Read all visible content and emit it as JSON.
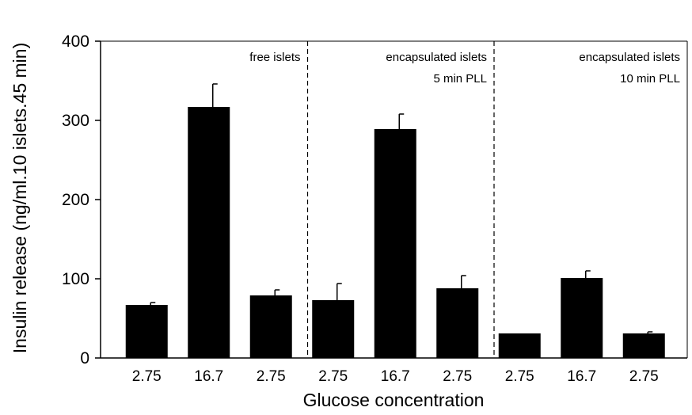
{
  "chart_data": {
    "type": "bar",
    "title": "",
    "xlabel": "Glucose concentration",
    "ylabel": "Insulin release (ng/ml.10 islets.45 min)",
    "ylim": [
      0,
      400
    ],
    "yticks": [
      0,
      100,
      200,
      300,
      400
    ],
    "grid": false,
    "categories": [
      "2.75",
      "16.7",
      "2.75",
      "2.75",
      "16.7",
      "2.75",
      "2.75",
      "16.7",
      "2.75"
    ],
    "values": [
      67,
      317,
      79,
      73,
      289,
      88,
      31,
      101,
      31
    ],
    "errors": [
      3,
      29,
      7,
      21,
      19,
      16,
      0,
      9,
      2
    ],
    "bar_color": "#000000",
    "groups": [
      {
        "label_lines": [
          "free islets"
        ],
        "bar_indices": [
          0,
          1,
          2
        ]
      },
      {
        "label_lines": [
          "encapsulated islets",
          "5 min PLL"
        ],
        "bar_indices": [
          3,
          4,
          5
        ]
      },
      {
        "label_lines": [
          "encapsulated islets",
          "10 min PLL"
        ],
        "bar_indices": [
          6,
          7,
          8
        ]
      }
    ]
  }
}
